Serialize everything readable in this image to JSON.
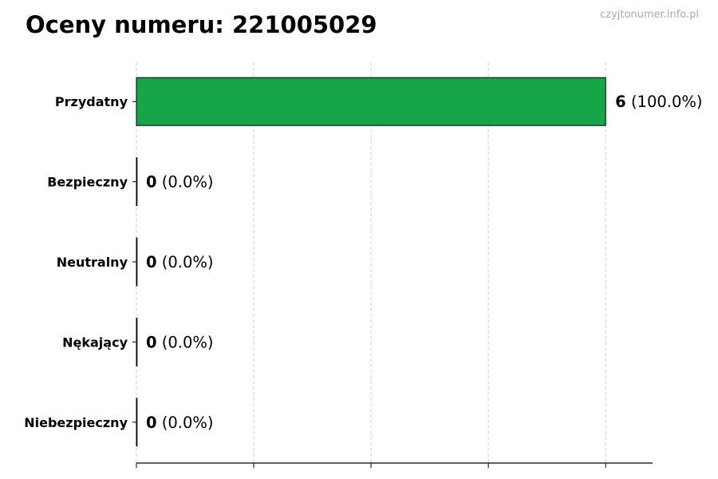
{
  "chart_data": {
    "type": "bar",
    "orientation": "horizontal",
    "title": "Oceny numeru: 221005029",
    "watermark": "czyjtonumer.info.pl",
    "categories": [
      "Przydatny",
      "Bezpieczny",
      "Neutralny",
      "Nękający",
      "Niebezpieczny"
    ],
    "values": [
      6,
      0,
      0,
      0,
      0
    ],
    "value_labels": [
      "6",
      "0",
      "0",
      "0",
      "0"
    ],
    "percent_labels": [
      "(100.0%)",
      "(0.0%)",
      "(0.0%)",
      "(0.0%)",
      "(0.0%)"
    ],
    "xlim": [
      0,
      6.6
    ],
    "xticks": [
      0,
      1.5,
      3,
      4.5,
      6
    ],
    "xtick_labels_shown": false,
    "grid": "vertical dashed",
    "bar_color": "#17a54a",
    "bar_edge_color": "#000000",
    "xlabel": "",
    "ylabel": ""
  }
}
